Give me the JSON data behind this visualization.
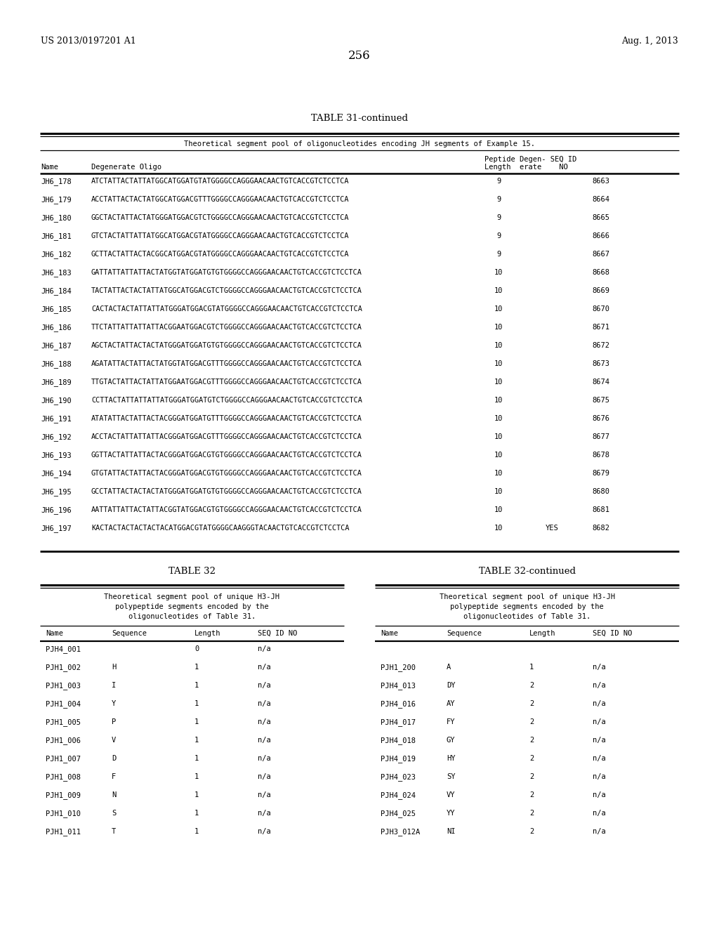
{
  "page_header_left": "US 2013/0197201 A1",
  "page_header_right": "Aug. 1, 2013",
  "page_number": "256",
  "table31_title": "TABLE 31-continued",
  "table31_subtitle": "Theoretical segment pool of oligonucleotides encoding JH segments of Example 15.",
  "table31_rows": [
    [
      "JH6_178",
      "ATCTATTACTATTATGGCATGGATGTATGGGGCCAGGGAACAACTGTCACCGTCTCCTCA",
      "9",
      "",
      "8663"
    ],
    [
      "JH6_179",
      "ACCTATTACTACTATGGCATGGACGTTTGGGGCCAGGGAACAACTGTCACCGTCTCCTCA",
      "9",
      "",
      "8664"
    ],
    [
      "JH6_180",
      "GGCTACTATTACTATGGGATGGACGTCTGGGGCCAGGGAACAACTGTCACCGTCTCCTCA",
      "9",
      "",
      "8665"
    ],
    [
      "JH6_181",
      "GTCTACTATTATTATGGCATGGACGTATGGGGCCAGGGAACAACTGTCACCGTCTCCTCA",
      "9",
      "",
      "8666"
    ],
    [
      "JH6_182",
      "GCTTACTATTACTACGGCATGGACGTATGGGGCCAGGGAACAACTGTCACCGTCTCCTCA",
      "9",
      "",
      "8667"
    ],
    [
      "JH6_183",
      "GATTATTATTATTACTATGGTATGGATGTGTGGGGCCAGGGAACAACTGTCACCGTCTCCTCA",
      "10",
      "",
      "8668"
    ],
    [
      "JH6_184",
      "TACTATTACTACTATTATGGCATGGACGTCTGGGGCCAGGGAACAACTGTCACCGTCTCCTCA",
      "10",
      "",
      "8669"
    ],
    [
      "JH6_185",
      "CACTACTACTATTATTATGGGATGGACGTATGGGGCCAGGGAACAACTGTCACCGTCTCCTCA",
      "10",
      "",
      "8670"
    ],
    [
      "JH6_186",
      "TTCTATTATTATTATTACGGAATGGACGTCTGGGGCCAGGGAACAACTGTCACCGTCTCCTCA",
      "10",
      "",
      "8671"
    ],
    [
      "JH6_187",
      "AGCTACTATTACTACTATGGGATGGATGTGTGGGGCCAGGGAACAACTGTCACCGTCTCCTCA",
      "10",
      "",
      "8672"
    ],
    [
      "JH6_188",
      "AGATATTACTATTACTATGGTATGGACGTTTGGGGCCAGGGAACAACTGTCACCGTCTCCTCA",
      "10",
      "",
      "8673"
    ],
    [
      "JH6_189",
      "TTGTACTATTACTATTATGGAATGGACGTTTGGGGCCAGGGAACAACTGTCACCGTCTCCTCA",
      "10",
      "",
      "8674"
    ],
    [
      "JH6_190",
      "CCTTACTATTATTATTATGGGATGGATGTCTGGGGCCAGGGAACAACTGTCACCGTCTCCTCA",
      "10",
      "",
      "8675"
    ],
    [
      "JH6_191",
      "ATATATTACTATTACTACGGGATGGATGTTTGGGGCCAGGGAACAACTGTCACCGTCTCCTCA",
      "10",
      "",
      "8676"
    ],
    [
      "JH6_192",
      "ACCTACTATTATTATTACGGGATGGACGTTTGGGGCCAGGGAACAACTGTCACCGTCTCCTCA",
      "10",
      "",
      "8677"
    ],
    [
      "JH6_193",
      "GGTTACTATTATTACTACGGGATGGACGTGTGGGGCCAGGGAACAACTGTCACCGTCTCCTCA",
      "10",
      "",
      "8678"
    ],
    [
      "JH6_194",
      "GTGTATTACTATTACTACGGGATGGACGTGTGGGGCCAGGGAACAACTGTCACCGTCTCCTCA",
      "10",
      "",
      "8679"
    ],
    [
      "JH6_195",
      "GCCTATTACTACTACTATGGGATGGATGTGTGGGGCCAGGGAACAACTGTCACCGTCTCCTCA",
      "10",
      "",
      "8680"
    ],
    [
      "JH6_196",
      "AATTATTATTACTATTACGGTATGGACGTGTGGGGCCAGGGAACAACTGTCACCGTCTCCTCA",
      "10",
      "",
      "8681"
    ],
    [
      "JH6_197",
      "KACTACTACTACTACTACATGGACGTATGGGGCAAGGGTACAACTGTCACCGTCTCCTCA",
      "10",
      "YES",
      "8682"
    ]
  ],
  "table32_title": "TABLE 32",
  "table32_cont_title": "TABLE 32-continued",
  "table32_subtitle": "Theoretical segment pool of unique H3-JH\npolypeptide segments encoded by the\noligonucleotides of Table 31.",
  "table32_left_rows": [
    [
      "PJH4_001",
      "",
      "0",
      "n/a"
    ],
    [
      "PJH1_002",
      "H",
      "1",
      "n/a"
    ],
    [
      "PJH1_003",
      "I",
      "1",
      "n/a"
    ],
    [
      "PJH1_004",
      "Y",
      "1",
      "n/a"
    ],
    [
      "PJH1_005",
      "P",
      "1",
      "n/a"
    ],
    [
      "PJH1_006",
      "V",
      "1",
      "n/a"
    ],
    [
      "PJH1_007",
      "D",
      "1",
      "n/a"
    ],
    [
      "PJH1_008",
      "F",
      "1",
      "n/a"
    ],
    [
      "PJH1_009",
      "N",
      "1",
      "n/a"
    ],
    [
      "PJH1_010",
      "S",
      "1",
      "n/a"
    ],
    [
      "PJH1_011",
      "T",
      "1",
      "n/a"
    ]
  ],
  "table32_right_rows": [
    [
      "PJH1_200",
      "A",
      "1",
      "n/a"
    ],
    [
      "PJH4_013",
      "DY",
      "2",
      "n/a"
    ],
    [
      "PJH4_016",
      "AY",
      "2",
      "n/a"
    ],
    [
      "PJH4_017",
      "FY",
      "2",
      "n/a"
    ],
    [
      "PJH4_018",
      "GY",
      "2",
      "n/a"
    ],
    [
      "PJH4_019",
      "HY",
      "2",
      "n/a"
    ],
    [
      "PJH4_023",
      "SY",
      "2",
      "n/a"
    ],
    [
      "PJH4_024",
      "VY",
      "2",
      "n/a"
    ],
    [
      "PJH4_025",
      "YY",
      "2",
      "n/a"
    ],
    [
      "PJH3_012A",
      "NI",
      "2",
      "n/a"
    ]
  ],
  "bg_color": "#ffffff",
  "text_color": "#000000"
}
